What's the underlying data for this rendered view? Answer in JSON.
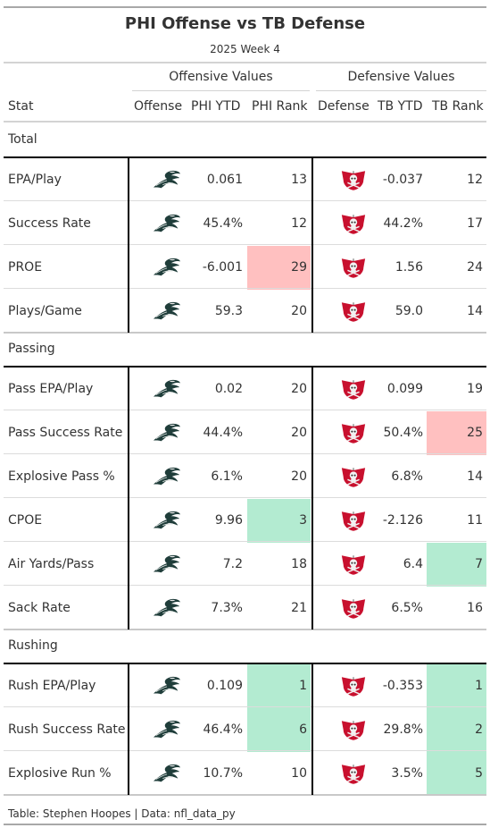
{
  "header": {
    "title": "PHI Offense vs TB Defense",
    "subtitle": "2025 Week 4",
    "offense_spanner": "Offensive Values",
    "defense_spanner": "Defensive Values"
  },
  "columns": [
    "Stat",
    "Offense",
    "PHI YTD",
    "PHI Rank",
    "Defense",
    "TB YTD",
    "TB Rank"
  ],
  "icons": {
    "offense": "eagle-logo-icon",
    "defense": "buccaneers-flag-logo-icon"
  },
  "colors": {
    "bad_rank": "#ffc0c0",
    "good_rank": "#b3ebd1",
    "eagles_green": "#1f3d3a",
    "bucs_red": "#c8102e"
  },
  "groups": [
    {
      "label": "Total",
      "rows": [
        {
          "stat": "EPA/Play",
          "phi_ytd": "0.061",
          "phi_rank": "13",
          "phi_rank_status": "",
          "tb_ytd": "-0.037",
          "tb_rank": "12",
          "tb_rank_status": ""
        },
        {
          "stat": "Success Rate",
          "phi_ytd": "45.4%",
          "phi_rank": "12",
          "phi_rank_status": "",
          "tb_ytd": "44.2%",
          "tb_rank": "17",
          "tb_rank_status": ""
        },
        {
          "stat": "PROE",
          "phi_ytd": "-6.001",
          "phi_rank": "29",
          "phi_rank_status": "bad",
          "tb_ytd": "1.56",
          "tb_rank": "24",
          "tb_rank_status": ""
        },
        {
          "stat": "Plays/Game",
          "phi_ytd": "59.3",
          "phi_rank": "20",
          "phi_rank_status": "",
          "tb_ytd": "59.0",
          "tb_rank": "14",
          "tb_rank_status": ""
        }
      ]
    },
    {
      "label": "Passing",
      "rows": [
        {
          "stat": "Pass EPA/Play",
          "phi_ytd": "0.02",
          "phi_rank": "20",
          "phi_rank_status": "",
          "tb_ytd": "0.099",
          "tb_rank": "19",
          "tb_rank_status": ""
        },
        {
          "stat": "Pass Success Rate",
          "phi_ytd": "44.4%",
          "phi_rank": "20",
          "phi_rank_status": "",
          "tb_ytd": "50.4%",
          "tb_rank": "25",
          "tb_rank_status": "bad"
        },
        {
          "stat": "Explosive Pass %",
          "phi_ytd": "6.1%",
          "phi_rank": "20",
          "phi_rank_status": "",
          "tb_ytd": "6.8%",
          "tb_rank": "14",
          "tb_rank_status": ""
        },
        {
          "stat": "CPOE",
          "phi_ytd": "9.96",
          "phi_rank": "3",
          "phi_rank_status": "good",
          "tb_ytd": "-2.126",
          "tb_rank": "11",
          "tb_rank_status": ""
        },
        {
          "stat": "Air Yards/Pass",
          "phi_ytd": "7.2",
          "phi_rank": "18",
          "phi_rank_status": "",
          "tb_ytd": "6.4",
          "tb_rank": "7",
          "tb_rank_status": "good"
        },
        {
          "stat": "Sack Rate",
          "phi_ytd": "7.3%",
          "phi_rank": "21",
          "phi_rank_status": "",
          "tb_ytd": "6.5%",
          "tb_rank": "16",
          "tb_rank_status": ""
        }
      ]
    },
    {
      "label": "Rushing",
      "rows": [
        {
          "stat": "Rush EPA/Play",
          "phi_ytd": "0.109",
          "phi_rank": "1",
          "phi_rank_status": "good",
          "tb_ytd": "-0.353",
          "tb_rank": "1",
          "tb_rank_status": "good"
        },
        {
          "stat": "Rush Success Rate",
          "phi_ytd": "46.4%",
          "phi_rank": "6",
          "phi_rank_status": "good",
          "tb_ytd": "29.8%",
          "tb_rank": "2",
          "tb_rank_status": "good"
        },
        {
          "stat": "Explosive Run %",
          "phi_ytd": "10.7%",
          "phi_rank": "10",
          "phi_rank_status": "",
          "tb_ytd": "3.5%",
          "tb_rank": "5",
          "tb_rank_status": "good"
        }
      ]
    }
  ],
  "source_note": "Table: Stephen Hoopes | Data: nfl_data_py"
}
